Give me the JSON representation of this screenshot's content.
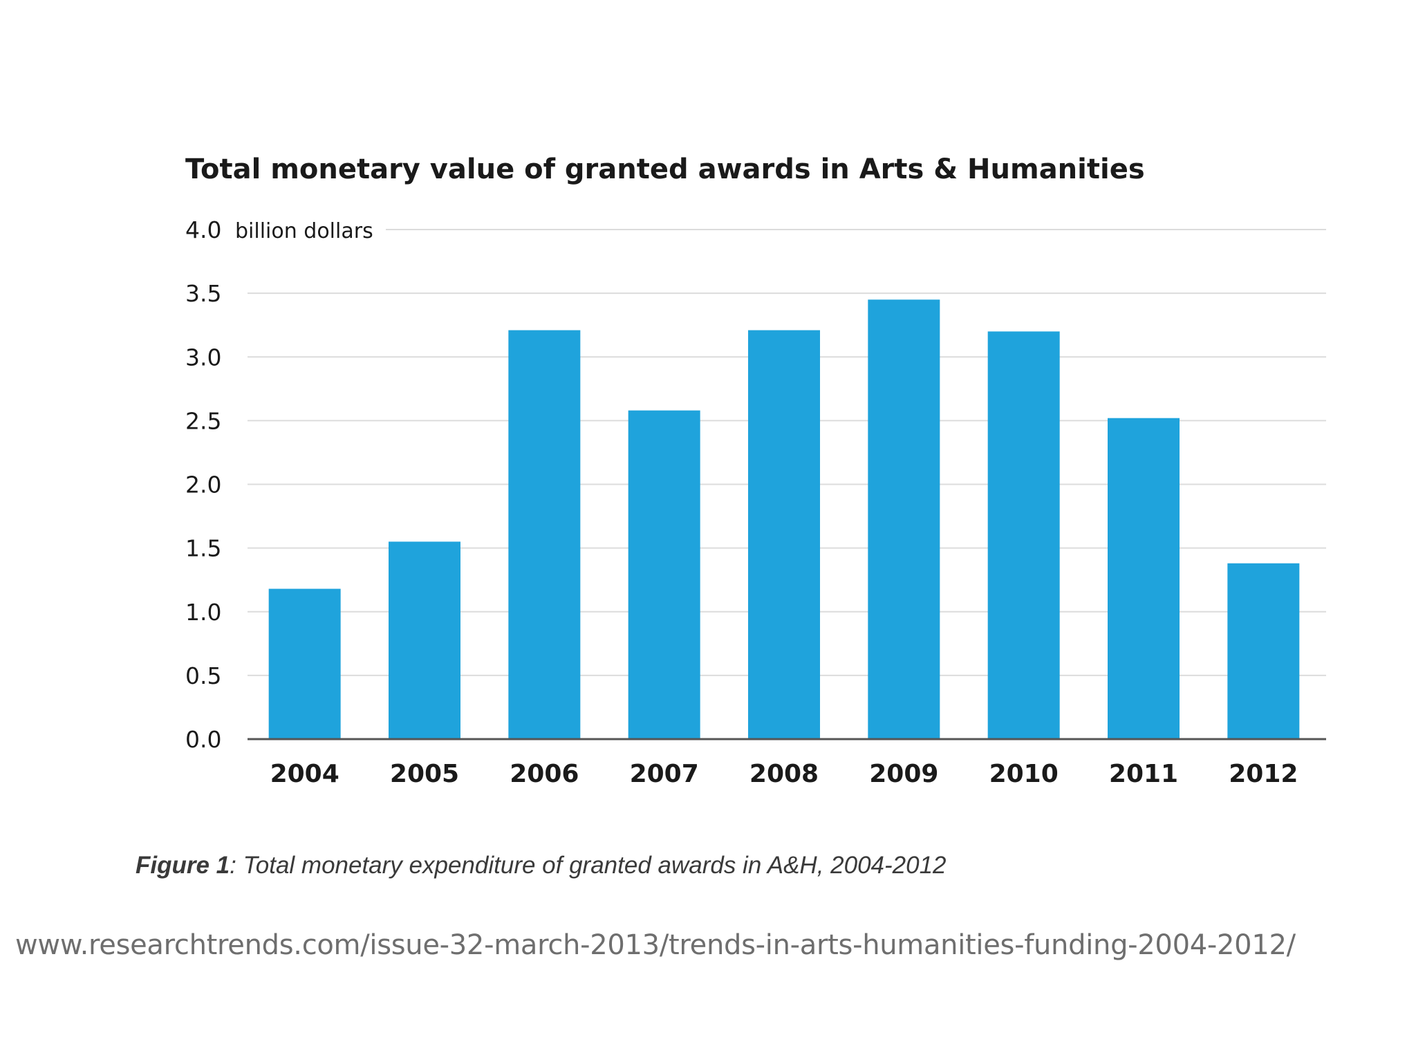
{
  "chart_data": {
    "type": "bar",
    "title": "Total monetary value of granted awards in Arts & Humanities",
    "unit_label": "billion dollars",
    "categories": [
      "2004",
      "2005",
      "2006",
      "2007",
      "2008",
      "2009",
      "2010",
      "2011",
      "2012"
    ],
    "values": [
      1.18,
      1.55,
      3.21,
      2.58,
      3.21,
      3.45,
      3.2,
      2.52,
      1.38
    ],
    "ylim": [
      0,
      4.0
    ],
    "yticks": [
      "0.0",
      "0.5",
      "1.0",
      "1.5",
      "2.0",
      "2.5",
      "3.0",
      "3.5",
      "4.0"
    ],
    "xlabel": "",
    "ylabel": "",
    "grid": "horizontal",
    "legend": "none",
    "bar_color": "#1fa3dc",
    "grid_color": "#dcdcdc",
    "axis_color": "#555555"
  },
  "caption": {
    "label": "Figure 1",
    "text": ": Total monetary expenditure of granted awards in A&H, 2004-2012"
  },
  "source_url": "www.researchtrends.com/issue-32-march-2013/trends-in-arts-humanities-funding-2004-2012/"
}
